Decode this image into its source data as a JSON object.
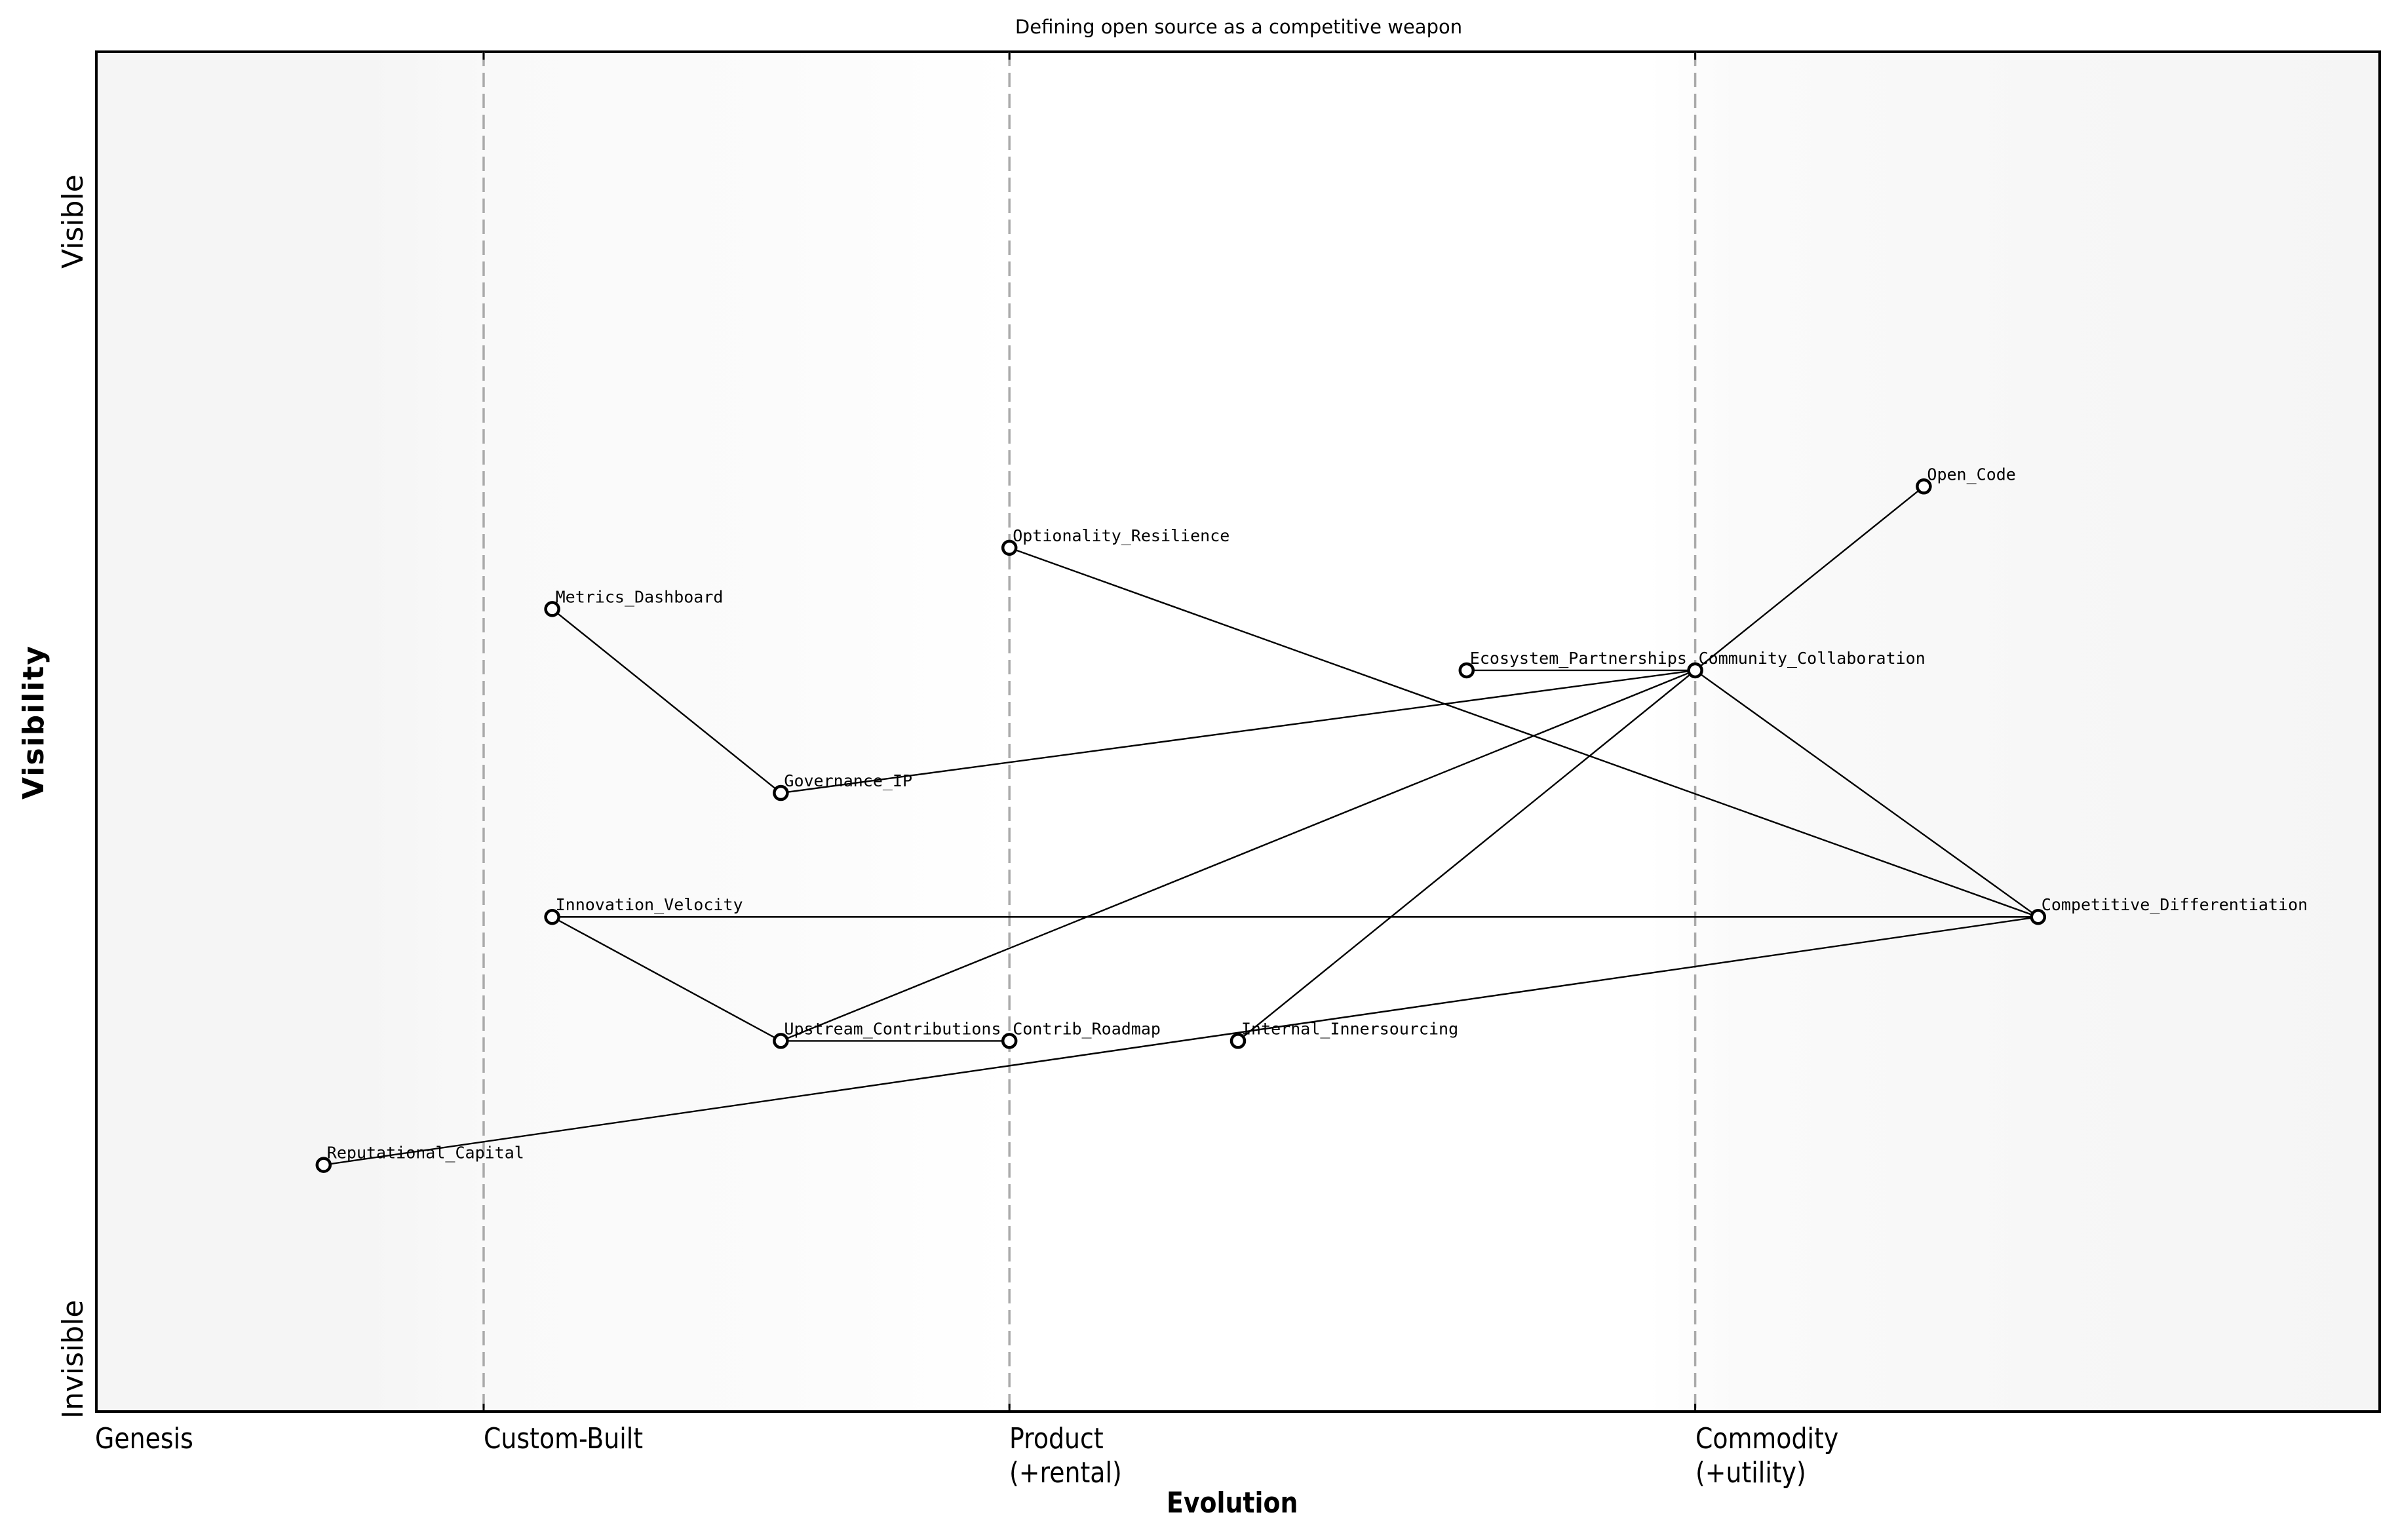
{
  "chart_data": {
    "type": "scatter",
    "subtype": "wardley-map",
    "title": "Defining open source as a competitive weapon",
    "xlabel": "Evolution",
    "ylabel": "Visibility",
    "xlim": [
      0,
      1
    ],
    "ylim": [
      0,
      1
    ],
    "grid": false,
    "legend": null,
    "y_tick_labels": {
      "top": "Visible",
      "bottom": "Invisible"
    },
    "x_stages": [
      {
        "label": "Genesis",
        "x": 0.0
      },
      {
        "label": "Custom-Built",
        "x": 0.17
      },
      {
        "label": "Product\n(+rental)",
        "x": 0.4
      },
      {
        "label": "Commodity\n(+utility)",
        "x": 0.7
      }
    ],
    "stage_dividers": [
      0.17,
      0.4,
      0.7
    ],
    "nodes": [
      {
        "name": "Metrics_Dashboard",
        "x": 0.2,
        "y": 0.59
      },
      {
        "name": "Governance_IP",
        "x": 0.3,
        "y": 0.455
      },
      {
        "name": "Optionality_Resilience",
        "x": 0.4,
        "y": 0.635
      },
      {
        "name": "Open_Code",
        "x": 0.8,
        "y": 0.68
      },
      {
        "name": "Ecosystem_Partnerships",
        "x": 0.6,
        "y": 0.545
      },
      {
        "name": "Community_Collaboration",
        "x": 0.7,
        "y": 0.545
      },
      {
        "name": "Competitive_Differentiation",
        "x": 0.85,
        "y": 0.364
      },
      {
        "name": "Innovation_Velocity",
        "x": 0.2,
        "y": 0.364
      },
      {
        "name": "Upstream_Contributions",
        "x": 0.3,
        "y": 0.273
      },
      {
        "name": "Contrib_Roadmap",
        "x": 0.4,
        "y": 0.273
      },
      {
        "name": "Internal_Innersourcing",
        "x": 0.5,
        "y": 0.273
      },
      {
        "name": "Reputational_Capital",
        "x": 0.1,
        "y": 0.182
      }
    ],
    "edges": [
      [
        "Metrics_Dashboard",
        "Governance_IP"
      ],
      [
        "Governance_IP",
        "Community_Collaboration"
      ],
      [
        "Optionality_Resilience",
        "Competitive_Differentiation"
      ],
      [
        "Ecosystem_Partnerships",
        "Community_Collaboration"
      ],
      [
        "Community_Collaboration",
        "Open_Code"
      ],
      [
        "Community_Collaboration",
        "Competitive_Differentiation"
      ],
      [
        "Community_Collaboration",
        "Upstream_Contributions"
      ],
      [
        "Community_Collaboration",
        "Internal_Innersourcing"
      ],
      [
        "Innovation_Velocity",
        "Competitive_Differentiation"
      ],
      [
        "Innovation_Velocity",
        "Upstream_Contributions"
      ],
      [
        "Upstream_Contributions",
        "Contrib_Roadmap"
      ],
      [
        "Reputational_Capital",
        "Competitive_Differentiation"
      ]
    ],
    "colors": {
      "line": "#000000",
      "node_fill": "#ffffff",
      "node_stroke": "#000000",
      "divider": "#aaaaaa",
      "background_edge": "#f5f5f5",
      "background_center": "#ffffff"
    }
  }
}
